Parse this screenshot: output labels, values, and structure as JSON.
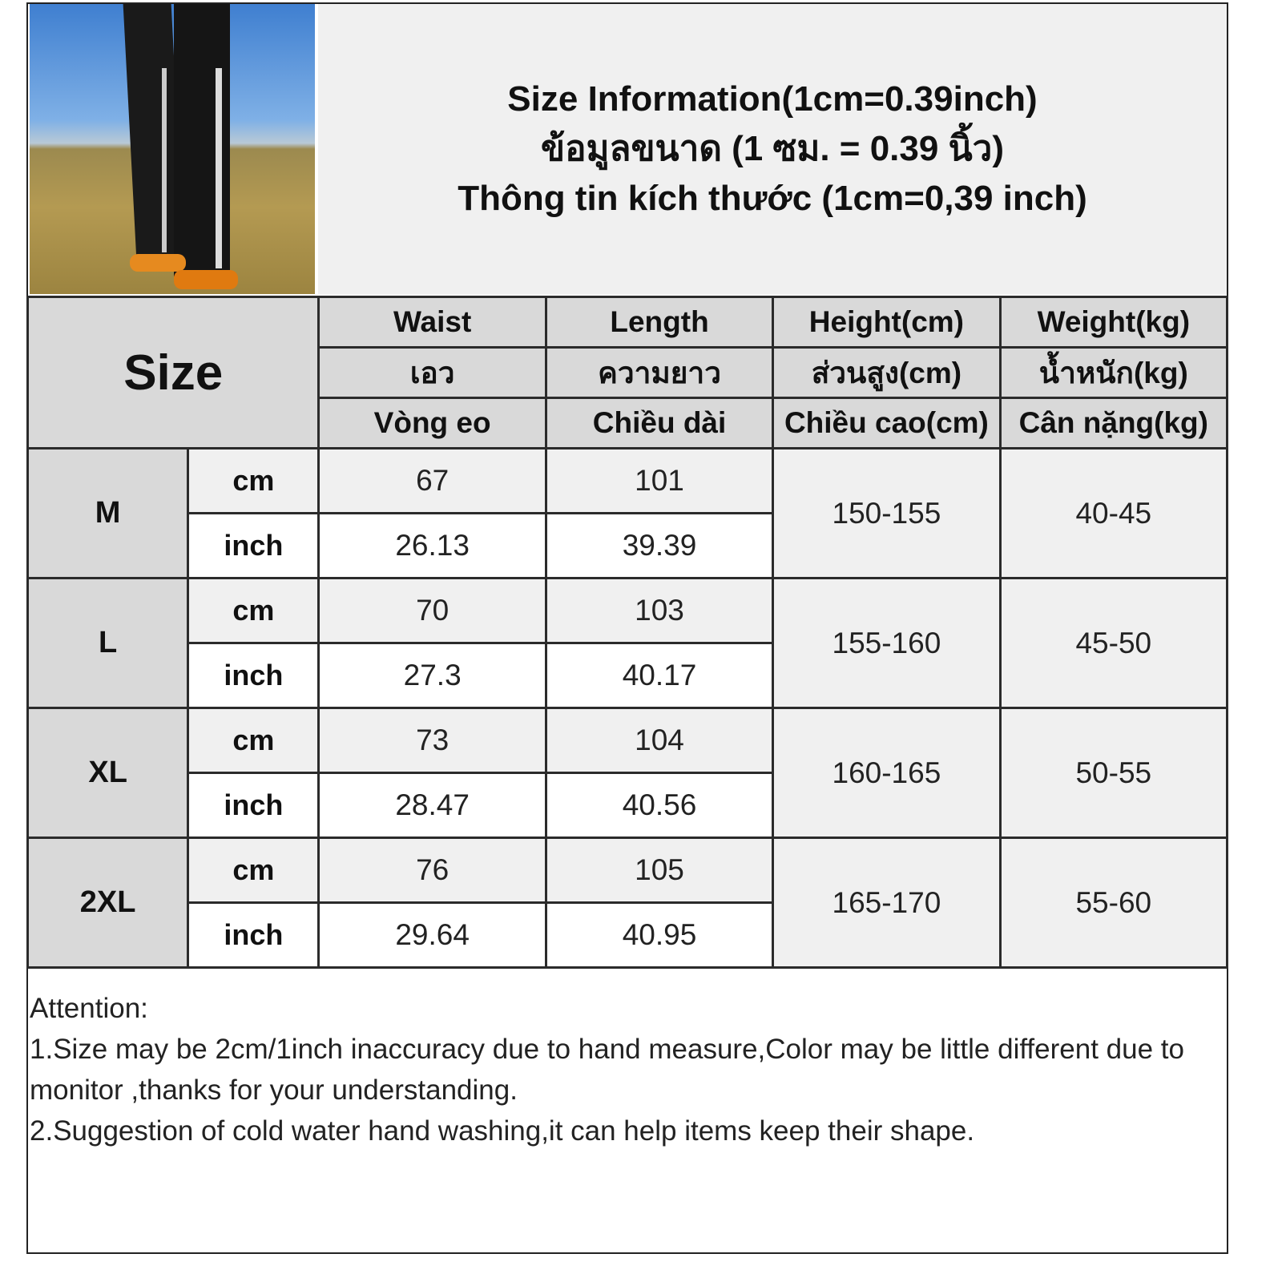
{
  "title_lines": [
    "Size Information(1cm=0.39inch)",
    "ข้อมูลขนาด (1 ซม. = 0.39 นิ้ว)",
    "Thông tin kích thước (1cm=0,39 inch)"
  ],
  "size_header": "Size",
  "columns": [
    {
      "en": "Waist",
      "th": "เอว",
      "vi": "Vòng eo"
    },
    {
      "en": "Length",
      "th": "ความยาว",
      "vi": "Chiều dài"
    },
    {
      "en": "Height(cm)",
      "th": "ส่วนสูง(cm)",
      "vi": "Chiều cao(cm)"
    },
    {
      "en": "Weight(kg)",
      "th": "น้ำหนัก(kg)",
      "vi": "Cân nặng(kg)"
    }
  ],
  "units": {
    "cm": "cm",
    "inch": "inch"
  },
  "rows": [
    {
      "size": "M",
      "cm": {
        "waist": "67",
        "length": "101"
      },
      "inch": {
        "waist": "26.13",
        "length": "39.39"
      },
      "height": "150-155",
      "weight": "40-45"
    },
    {
      "size": "L",
      "cm": {
        "waist": "70",
        "length": "103"
      },
      "inch": {
        "waist": "27.3",
        "length": "40.17"
      },
      "height": "155-160",
      "weight": "45-50"
    },
    {
      "size": "XL",
      "cm": {
        "waist": "73",
        "length": "104"
      },
      "inch": {
        "waist": "28.47",
        "length": "40.56"
      },
      "height": "160-165",
      "weight": "50-55"
    },
    {
      "size": "2XL",
      "cm": {
        "waist": "76",
        "length": "105"
      },
      "inch": {
        "waist": "29.64",
        "length": "40.95"
      },
      "height": "165-170",
      "weight": "55-60"
    }
  ],
  "notes": [
    "Attention:",
    "1.Size may be 2cm/1inch inaccuracy due to hand measure,Color may be little different due to monitor ,thanks for your understanding.",
    "2.Suggestion of cold water hand washing,it can help items keep their shape."
  ]
}
